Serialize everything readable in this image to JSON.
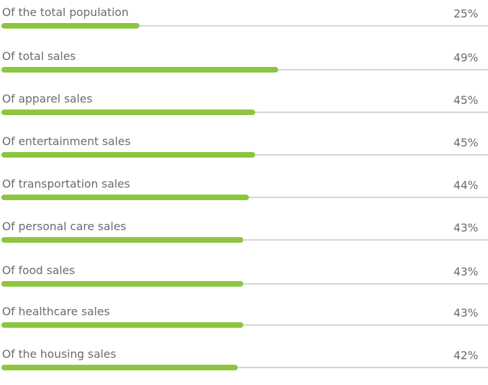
{
  "chart_data": {
    "type": "bar",
    "orientation": "horizontal",
    "categories": [
      "Of the total population",
      "Of total sales",
      "Of apparel sales",
      "Of entertainment sales",
      "Of transportation sales",
      "Of personal care sales",
      "Of food sales",
      "Of healthcare sales",
      "Of the housing sales"
    ],
    "values": [
      25,
      49,
      45,
      45,
      44,
      43,
      43,
      43,
      42
    ],
    "value_labels": [
      "25%",
      "49%",
      "45%",
      "45%",
      "44%",
      "43%",
      "43%",
      "43%",
      "42%"
    ],
    "unit": "%",
    "bar_color": "#8cc63f",
    "track_color": "#d4d4d4",
    "grid": false
  }
}
